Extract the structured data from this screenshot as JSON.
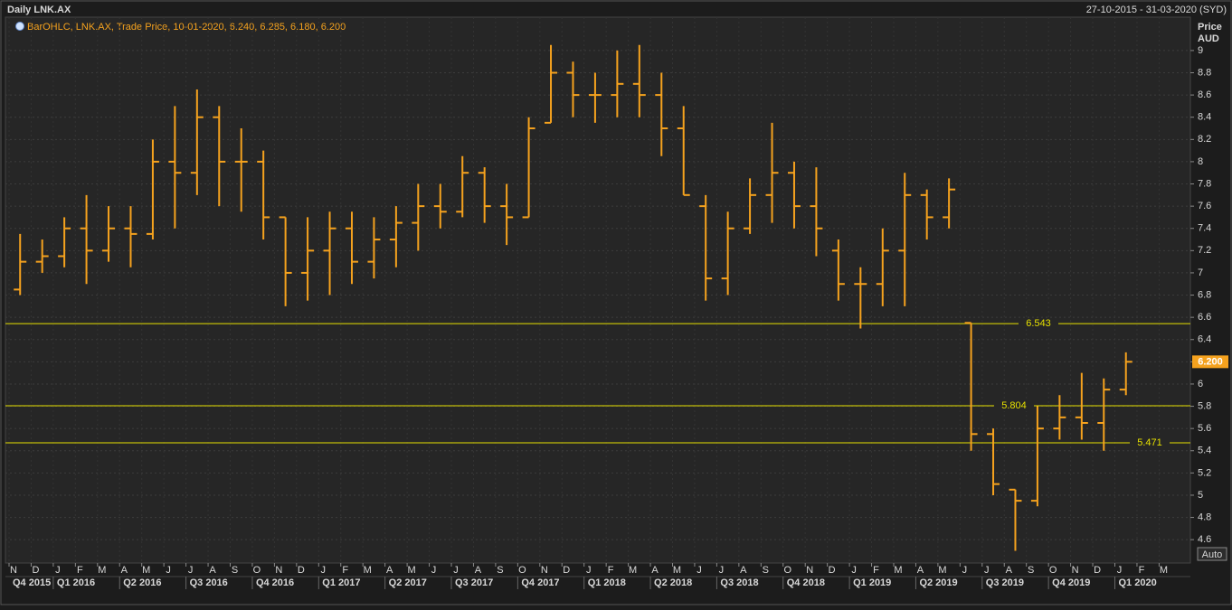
{
  "chart_data": {
    "type": "ohlc",
    "title": "Daily LNK.AX",
    "date_range": "27-10-2015 - 31-03-2020 (SYD)",
    "legend": "BarOHLC, LNK.AX, Trade Price, 10-01-2020, 6.240, 6.285, 6.180, 6.200",
    "y_label": [
      "Price",
      "AUD"
    ],
    "color": "#f5a21e",
    "categories": [
      "N",
      "D",
      "J",
      "F",
      "M",
      "A",
      "M",
      "J",
      "J",
      "A",
      "S",
      "O",
      "N",
      "D",
      "J",
      "F",
      "M",
      "A",
      "M",
      "J",
      "J",
      "A",
      "S",
      "O",
      "N",
      "D",
      "J",
      "F",
      "M",
      "A",
      "M",
      "J",
      "J",
      "A",
      "S",
      "O",
      "N",
      "D",
      "J",
      "F",
      "M",
      "A",
      "M",
      "J",
      "J",
      "A",
      "S",
      "O",
      "N",
      "D",
      "J",
      "F",
      "M"
    ],
    "quarters": [
      "Q4 2015",
      "Q1 2016",
      "Q2 2016",
      "Q3 2016",
      "Q4 2016",
      "Q1 2017",
      "Q2 2017",
      "Q3 2017",
      "Q4 2017",
      "Q1 2018",
      "Q2 2018",
      "Q3 2018",
      "Q4 2018",
      "Q1 2019",
      "Q2 2019",
      "Q3 2019",
      "Q4 2019",
      "Q1 2020"
    ],
    "open": [
      6.85,
      7.1,
      7.15,
      7.4,
      7.2,
      7.4,
      7.35,
      8.0,
      7.9,
      8.4,
      8.0,
      8.0,
      7.5,
      7.0,
      7.2,
      7.4,
      7.1,
      7.3,
      7.45,
      7.6,
      7.55,
      7.9,
      7.6,
      7.5,
      8.35,
      8.8,
      8.6,
      8.6,
      8.7,
      8.6,
      8.3,
      7.6,
      6.95,
      7.4,
      7.7,
      7.9,
      7.6,
      7.2,
      6.9,
      6.9,
      7.2,
      7.7,
      7.5,
      6.55,
      5.55,
      5.05,
      4.95,
      5.6,
      5.7,
      5.65,
      5.95,
      null,
      null
    ],
    "high": [
      7.35,
      7.3,
      7.5,
      7.7,
      7.6,
      7.6,
      8.2,
      8.5,
      8.65,
      8.5,
      8.3,
      8.1,
      7.5,
      7.5,
      7.55,
      7.55,
      7.5,
      7.6,
      7.8,
      7.8,
      8.05,
      7.95,
      7.8,
      8.4,
      9.05,
      8.9,
      8.8,
      9.0,
      9.05,
      8.8,
      8.5,
      7.7,
      7.55,
      7.85,
      8.35,
      8.0,
      7.95,
      7.3,
      7.05,
      7.4,
      7.9,
      7.75,
      7.85,
      6.55,
      5.6,
      5.05,
      5.8,
      5.9,
      6.1,
      6.05,
      6.285,
      null,
      null
    ],
    "low": [
      6.8,
      7.0,
      7.05,
      6.9,
      7.1,
      7.05,
      7.3,
      7.4,
      7.7,
      7.6,
      7.55,
      7.3,
      6.7,
      6.75,
      6.8,
      6.9,
      6.95,
      7.05,
      7.2,
      7.4,
      7.5,
      7.45,
      7.25,
      7.5,
      8.35,
      8.4,
      8.35,
      8.4,
      8.4,
      8.05,
      7.7,
      6.75,
      6.8,
      7.35,
      7.45,
      7.4,
      7.15,
      6.75,
      6.5,
      6.7,
      6.7,
      7.3,
      7.4,
      5.4,
      5.0,
      4.5,
      4.9,
      5.5,
      5.5,
      5.4,
      5.9,
      null,
      null
    ],
    "close": [
      7.1,
      7.15,
      7.4,
      7.2,
      7.4,
      7.35,
      8.0,
      7.9,
      8.4,
      8.0,
      8.0,
      7.5,
      7.0,
      7.2,
      7.4,
      7.1,
      7.3,
      7.45,
      7.6,
      7.55,
      7.9,
      7.6,
      7.5,
      8.3,
      8.8,
      8.6,
      8.6,
      8.7,
      8.6,
      8.3,
      7.7,
      6.95,
      7.4,
      7.7,
      7.9,
      7.6,
      7.4,
      6.9,
      6.9,
      7.2,
      7.7,
      7.5,
      7.75,
      5.55,
      5.1,
      4.95,
      5.6,
      5.7,
      5.65,
      5.95,
      6.2,
      null,
      null
    ],
    "levels": [
      {
        "value": 6.543,
        "label": "6.543"
      },
      {
        "value": 5.804,
        "label": "5.804"
      },
      {
        "value": 5.471,
        "label": "5.471"
      }
    ],
    "last_price": {
      "value": 6.2,
      "label": "6.200"
    },
    "button": "Auto",
    "ylim": [
      4.39,
      9.3
    ],
    "yticks": [
      4.6,
      4.8,
      5,
      5.2,
      5.4,
      5.6,
      5.8,
      6,
      6.2,
      6.4,
      6.6,
      6.8,
      7,
      7.2,
      7.4,
      7.6,
      7.8,
      8,
      8.2,
      8.4,
      8.6,
      8.8,
      9
    ],
    "grid": true
  }
}
